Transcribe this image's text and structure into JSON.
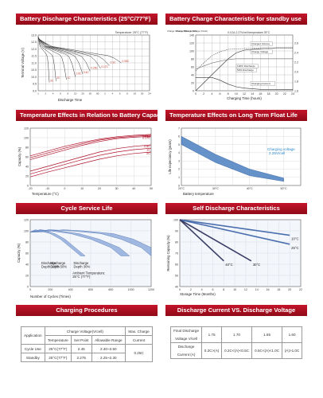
{
  "headers": {
    "discharge": "Battery Discharge Characteristics (25°C/77°F)",
    "charge": "Battery Charge Characteristic for standby use",
    "temperature": "Temperature Effects in Relation to Battery Capacity",
    "floatlife": "Temperature Effects on Long Term Float Life",
    "cycle": "Cycle Service Life",
    "selfdischarge": "Self Discharge Characteristics",
    "procedures": "Charging Procedures",
    "dischargevoltage": "Discharge Current VS. Discharge Voltage"
  },
  "chart_data": [
    {
      "id": "discharge",
      "type": "line",
      "title": "Battery Discharge Characteristics (25°C/77°F)",
      "xlabel": "Discharge Time",
      "ylabel": "Terminal Voltage (V)",
      "annotation": "Temperature: 25°C (77°F)",
      "yticks": [
        "13.0",
        "12.5",
        "12.0",
        "11.5",
        "11.0",
        "10.5",
        "10.0",
        "9.5",
        "9.0"
      ],
      "xticks": [
        "1",
        "2",
        "4",
        "6",
        "8",
        "10",
        "20",
        "30",
        "60",
        "2",
        "4",
        "6",
        "8",
        "10",
        "20",
        "24"
      ],
      "ylim": [
        9.0,
        13.0
      ],
      "series": [
        {
          "name": "3C",
          "end_x": 1.5,
          "end_v": 9.6
        },
        {
          "name": "2C",
          "end_x": 2.4,
          "end_v": 9.7
        },
        {
          "name": "1C",
          "end_x": 3.8,
          "end_v": 9.8
        },
        {
          "name": "0.6C",
          "end_x": 5.0,
          "end_v": 10.0
        },
        {
          "name": "0.4C",
          "end_x": 6.0,
          "end_v": 10.2
        },
        {
          "name": "0.25C",
          "end_x": 7.0,
          "end_v": 10.4
        },
        {
          "name": "0.17C",
          "end_x": 8.4,
          "end_v": 10.6
        },
        {
          "name": "0.1C",
          "end_x": 9.6,
          "end_v": 10.8
        },
        {
          "name": "0.05C",
          "end_x": 11.2,
          "end_v": 11.0
        }
      ]
    },
    {
      "id": "charge",
      "type": "line",
      "title": "Battery Charge Characteristic for standby use",
      "xlabel": "Charging Time (hours)",
      "annotation": "0.1CA-2.27V/cell temperature 25°C",
      "left_axes": [
        "Charge Volume (%)",
        "Charge Current (CA)",
        "Charge Voltage (V/cell)"
      ],
      "yticks_left": [
        "140",
        "120",
        "100",
        "80",
        "60",
        "40",
        "20",
        "0"
      ],
      "yticks_right": [
        "2.6",
        "2.4",
        "2.2",
        "2.0",
        "1.8",
        "1.6"
      ],
      "xticks": [
        "0",
        "2",
        "4",
        "6",
        "8",
        "10",
        "12",
        "14",
        "16",
        "18",
        "20",
        "22",
        "24"
      ],
      "legend": [
        "Charged Volume",
        "Charge Voltage",
        "100% Discharge",
        "50% Discharge",
        "Charging Current"
      ],
      "series": [
        {
          "name": "Charged Volume 100% Discharge",
          "x": [
            0,
            2,
            4,
            6,
            8,
            10,
            12,
            16,
            20,
            24
          ],
          "y": [
            0,
            20,
            40,
            60,
            80,
            95,
            102,
            106,
            108,
            108
          ]
        },
        {
          "name": "Charged Volume 50% Discharge",
          "x": [
            0,
            2,
            4,
            6,
            8,
            12,
            16,
            20,
            24
          ],
          "y": [
            50,
            70,
            88,
            98,
            104,
            106,
            107,
            107,
            107
          ]
        },
        {
          "name": "Charge Voltage",
          "x": [
            0,
            2,
            4,
            6,
            8,
            10,
            12,
            16,
            20,
            24
          ],
          "y": [
            2.05,
            2.12,
            2.18,
            2.22,
            2.25,
            2.27,
            2.27,
            2.27,
            2.27,
            2.27
          ]
        },
        {
          "name": "Charging Current",
          "x": [
            0,
            4,
            6,
            8,
            10,
            12,
            16,
            20,
            24
          ],
          "y": [
            0.1,
            0.1,
            0.08,
            0.05,
            0.03,
            0.02,
            0.01,
            0.01,
            0.01
          ]
        }
      ]
    },
    {
      "id": "temperature",
      "type": "line",
      "xlabel": "Temperature (°C)",
      "ylabel": "Capacity (%)",
      "yticks": [
        "120",
        "100",
        "80",
        "60",
        "40",
        "20",
        "0"
      ],
      "xticks": [
        "-20",
        "-10",
        "0",
        "10",
        "20",
        "30",
        "40",
        "50"
      ],
      "xlim": [
        -20,
        50
      ],
      "ylim": [
        0,
        120
      ],
      "series": [
        {
          "name": "0.05C",
          "x": [
            -20,
            -10,
            0,
            10,
            20,
            30,
            40,
            50
          ],
          "y": [
            62,
            72,
            82,
            90,
            97,
            102,
            105,
            107
          ]
        },
        {
          "name": "0.1C",
          "x": [
            -20,
            -10,
            0,
            10,
            20,
            30,
            40,
            50
          ],
          "y": [
            58,
            68,
            78,
            87,
            95,
            100,
            103,
            105
          ]
        },
        {
          "name": "0.17C",
          "x": [
            -20,
            -10,
            0,
            10,
            20,
            30,
            40,
            50
          ],
          "y": [
            54,
            64,
            74,
            84,
            92,
            98,
            101,
            103
          ]
        },
        {
          "name": "0.6C",
          "x": [
            -20,
            -10,
            0,
            10,
            20,
            30,
            40,
            50
          ],
          "y": [
            30,
            40,
            50,
            60,
            70,
            77,
            82,
            85
          ]
        },
        {
          "name": "1C",
          "x": [
            -20,
            -10,
            0,
            10,
            20,
            30,
            40,
            50
          ],
          "y": [
            24,
            34,
            44,
            54,
            63,
            70,
            75,
            78
          ]
        },
        {
          "name": "2C",
          "x": [
            -20,
            -10,
            0,
            10,
            20,
            30,
            40,
            50
          ],
          "y": [
            18,
            28,
            37,
            46,
            55,
            62,
            67,
            70
          ]
        }
      ]
    },
    {
      "id": "floatlife",
      "type": "area",
      "xlabel": "Battery temperature",
      "ylabel": "Life expectancy (years)",
      "annotation": "Charging voltage 2.25V/cell",
      "yticks": [
        "7",
        "6",
        "5",
        "4",
        "3",
        "2",
        "1",
        "0"
      ],
      "xticks": [
        "20°C",
        "30°C",
        "40°C",
        "50°C"
      ],
      "xlim": [
        20,
        55
      ],
      "ylim": [
        0,
        7
      ],
      "band_upper": {
        "x": [
          20,
          30,
          40,
          50
        ],
        "y": [
          6.0,
          3.8,
          2.0,
          0.9
        ]
      },
      "band_lower": {
        "x": [
          20,
          30,
          40,
          50
        ],
        "y": [
          5.0,
          2.8,
          1.2,
          0.5
        ]
      }
    },
    {
      "id": "cycle",
      "type": "line",
      "xlabel": "Number of Cycles (Times)",
      "ylabel": "Capacity (%)",
      "annotation": "Ambient Temperature: 25°C (77°F)",
      "yticks": [
        "120",
        "100",
        "80",
        "60",
        "40",
        "20",
        "0"
      ],
      "xticks": [
        "0",
        "200",
        "400",
        "600",
        "800",
        "1000",
        "1200"
      ],
      "xlim": [
        0,
        1200
      ],
      "ylim": [
        0,
        120
      ],
      "series": [
        {
          "name": "Discharge Depth 100%",
          "x": [
            0,
            50,
            100,
            200,
            300,
            400,
            500
          ],
          "y": [
            98,
            102,
            100,
            95,
            85,
            70,
            55
          ]
        },
        {
          "name": "Discharge Depth 50%",
          "x": [
            0,
            100,
            200,
            400,
            600,
            800,
            900
          ],
          "y": [
            98,
            102,
            100,
            95,
            85,
            70,
            55
          ]
        },
        {
          "name": "Discharge Depth 30%",
          "x": [
            0,
            200,
            400,
            700,
            900,
            1100,
            1200
          ],
          "y": [
            98,
            102,
            100,
            95,
            85,
            70,
            55
          ]
        }
      ]
    },
    {
      "id": "selfdischarge",
      "type": "line",
      "xlabel": "Storage Time (Months)",
      "ylabel": "Remaining Capacity (%)",
      "yticks": [
        "100",
        "90",
        "80",
        "70",
        "60",
        "50",
        "40"
      ],
      "xticks": [
        "0",
        "2",
        "4",
        "6",
        "8",
        "10",
        "12",
        "14",
        "16",
        "18",
        "20",
        "22"
      ],
      "xlim": [
        0,
        22
      ],
      "ylim": [
        40,
        100
      ],
      "series": [
        {
          "name": "10°C",
          "x": [
            0,
            20
          ],
          "y": [
            100,
            86
          ]
        },
        {
          "name": "25°C",
          "x": [
            0,
            20
          ],
          "y": [
            100,
            78
          ]
        },
        {
          "name": "30°C",
          "x": [
            0,
            13
          ],
          "y": [
            100,
            63
          ]
        },
        {
          "name": "40°C",
          "x": [
            0,
            8
          ],
          "y": [
            100,
            63
          ]
        }
      ]
    }
  ],
  "procedures_table": {
    "application": "Application",
    "charge_voltage": "Charge Voltage(V/cell)",
    "temperature": "Temperature",
    "set_point": "Set Point",
    "allowable_range": "Allowable Range",
    "max_charge": "Max. Charge",
    "current": "Current",
    "rows": [
      {
        "app": "Cycle Use",
        "temp": "25°C(77°F)",
        "set": "2.45",
        "range": "2.40~2.50"
      },
      {
        "app": "Standby",
        "temp": "25°C(77°F)",
        "set": "2.275",
        "range": "2.25~2.30"
      }
    ],
    "max_value": "0.25C"
  },
  "discharge_table": {
    "final_label": "Final Discharge",
    "voltage_label": "Voltage V/cell",
    "voltages": [
      "1.75",
      "1.70",
      "1.65",
      "1.60"
    ],
    "discharge_label": "Discharge",
    "current_label": "Current (A)",
    "currents": [
      "0.2C>(A)",
      "0.2C<(A)<0.5C",
      "0.5C<(A)<1.0C",
      "(A)>1.0C"
    ]
  }
}
